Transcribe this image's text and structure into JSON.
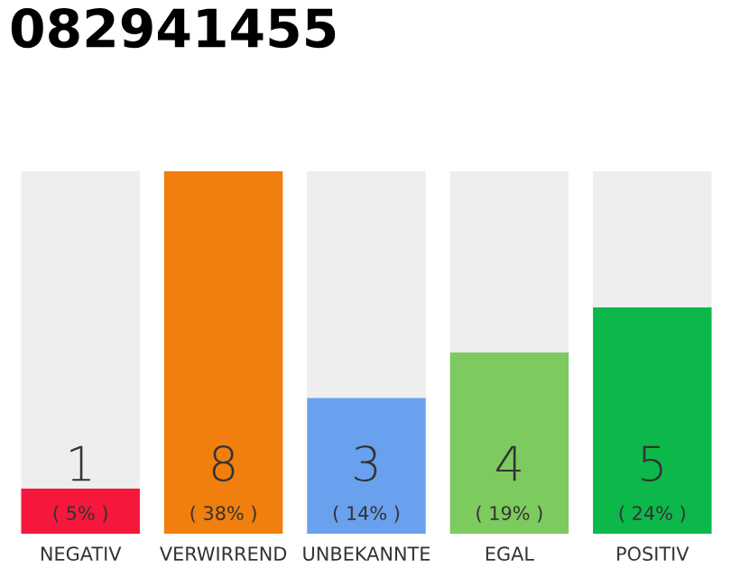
{
  "chart_data": {
    "type": "bar",
    "title": "082941455",
    "categories": [
      "NEGATIV",
      "VERWIRREND",
      "UNBEKANNTE",
      "EGAL",
      "POSITIV"
    ],
    "stacked": true,
    "series": [
      {
        "colors": [
          "#f5173c",
          "#f07f0d",
          "#6aa1ee",
          "#7dca5e",
          "#0db84a"
        ],
        "values": [
          1,
          8,
          3,
          4,
          5
        ],
        "value_labels": [
          "1",
          "8",
          "3",
          "4",
          "5"
        ]
      },
      {
        "color": "#eeeeee",
        "values": [
          7,
          0,
          5,
          4,
          3
        ]
      }
    ],
    "ylim": [
      0,
      8
    ],
    "tick_labels": "x",
    "grid": false,
    "legend": false,
    "annotations": [
      "( 5% )",
      "( 38% )",
      "( 14% )",
      "( 19% )",
      "( 24% )"
    ]
  }
}
